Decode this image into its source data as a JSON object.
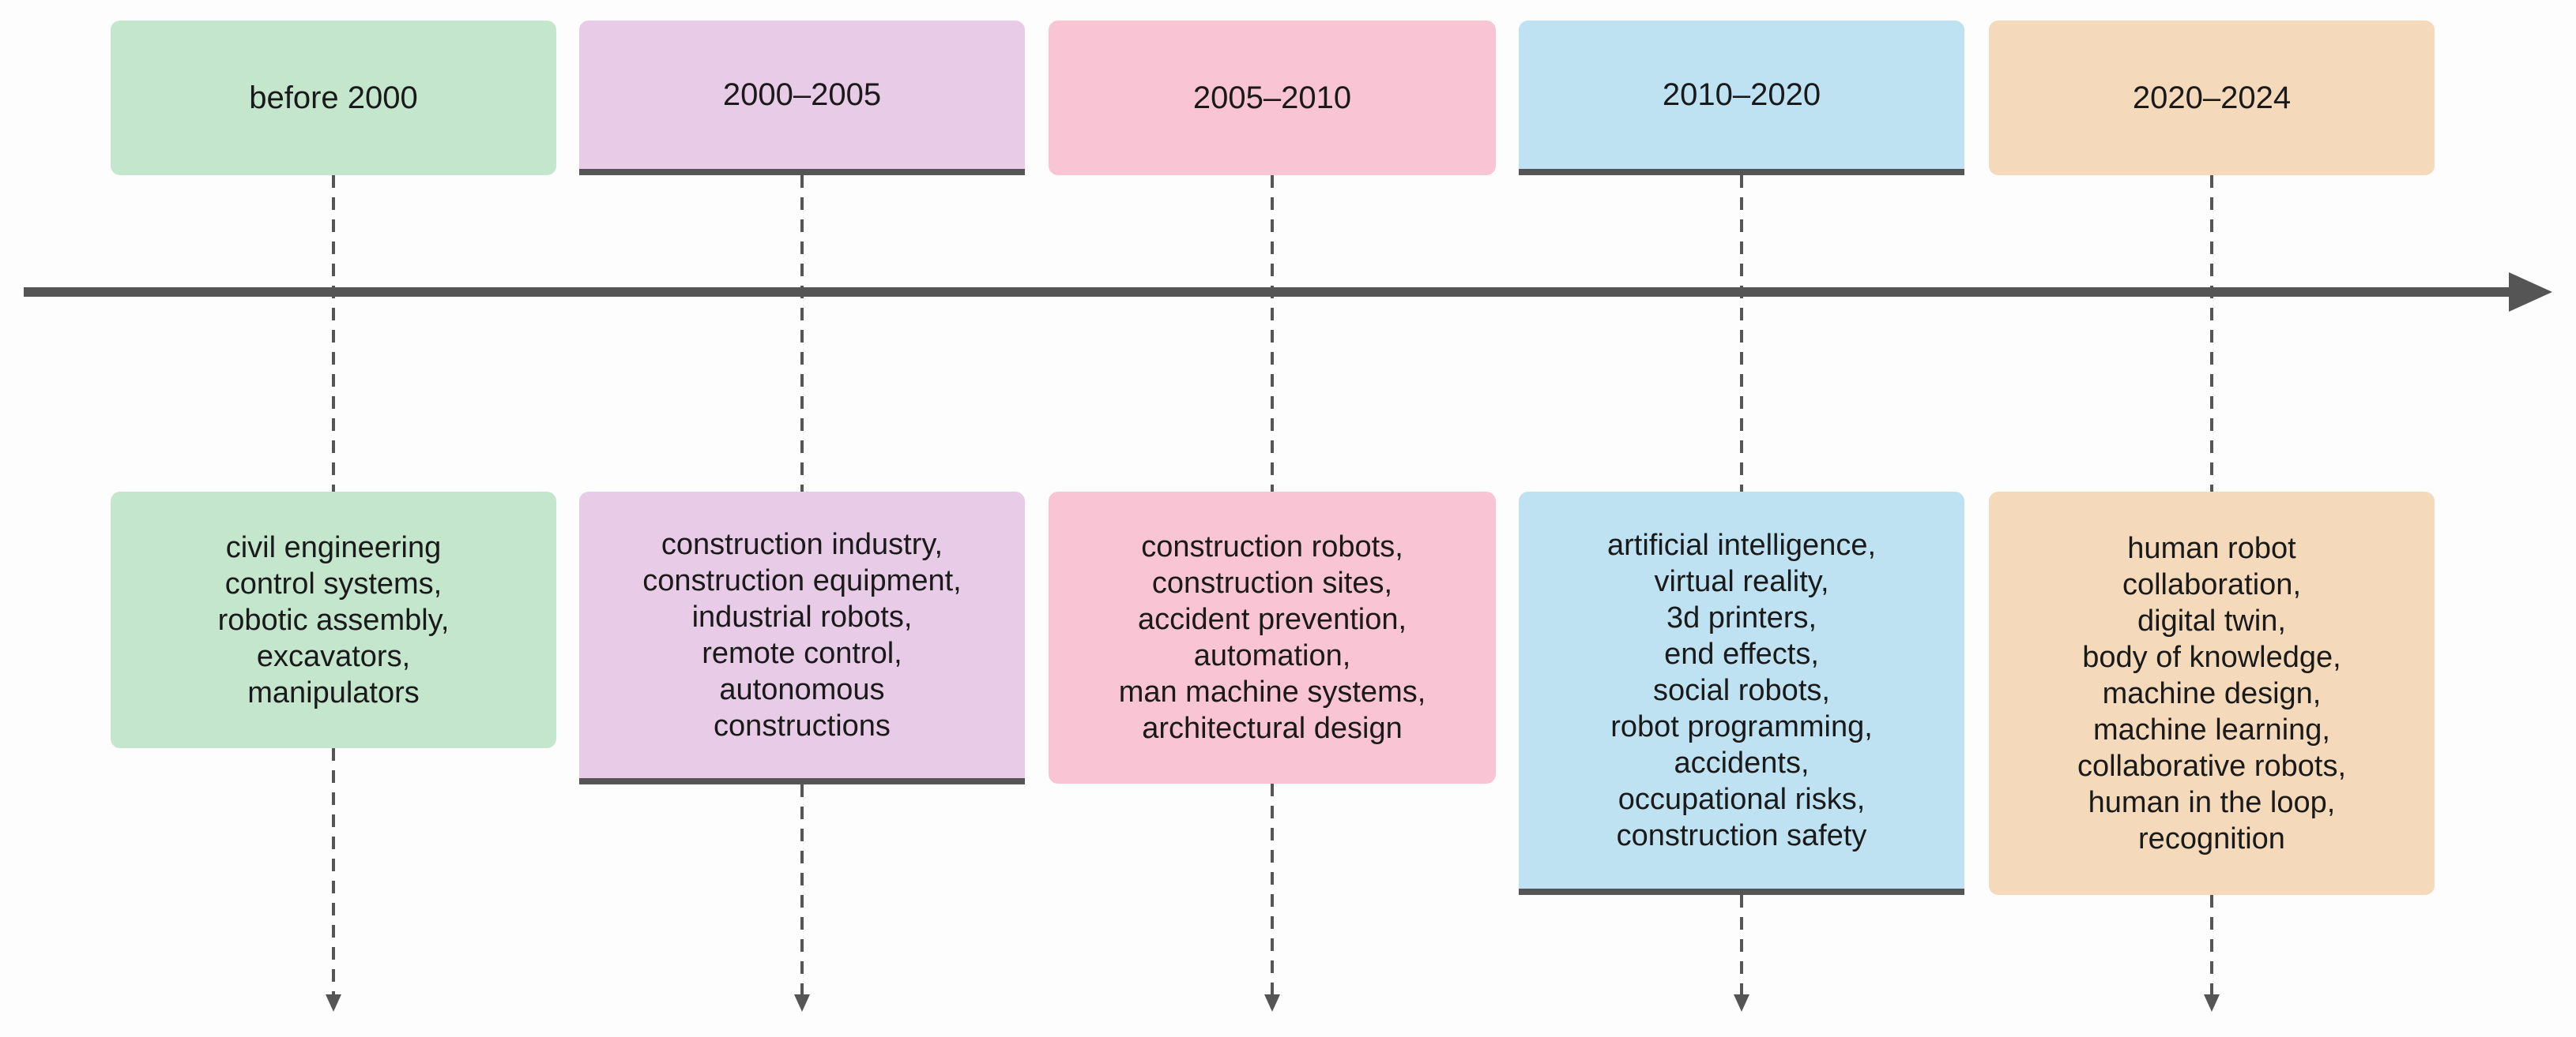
{
  "colors": {
    "green": "#c4e6cc",
    "purple": "#e8cbe6",
    "pink": "#f9c4d4",
    "blue": "#bfe2f2",
    "peach": "#f4d9bb",
    "axis": "#555555"
  },
  "periods": [
    {
      "label": "before 2000",
      "color": "#c4e6cc",
      "keywords": [
        "civil engineering",
        "control systems,",
        "robotic assembly,",
        "excavators,",
        "manipulators"
      ]
    },
    {
      "label": "2000–2005",
      "color": "#e8cbe6",
      "keywords": [
        "construction industry,",
        "construction equipment,",
        "industrial robots,",
        "remote control,",
        "autonomous",
        "constructions"
      ]
    },
    {
      "label": "2005–2010",
      "color": "#f9c4d4",
      "keywords": [
        "construction robots,",
        "construction sites,",
        "accident prevention,",
        "automation,",
        "man machine systems,",
        "architectural design"
      ]
    },
    {
      "label": "2010–2020",
      "color": "#bfe2f2",
      "keywords": [
        "artificial intelligence,",
        "virtual reality,",
        "3d printers,",
        "end effects,",
        "social robots,",
        "robot programming,",
        "accidents,",
        "occupational risks,",
        "construction safety"
      ]
    },
    {
      "label": "2020–2024",
      "color": "#f4d9bb",
      "keywords": [
        "human robot",
        "collaboration,",
        "digital twin,",
        "body of knowledge,",
        "machine design,",
        "machine learning,",
        "collaborative robots,",
        "human in the loop,",
        "recognition"
      ]
    }
  ]
}
